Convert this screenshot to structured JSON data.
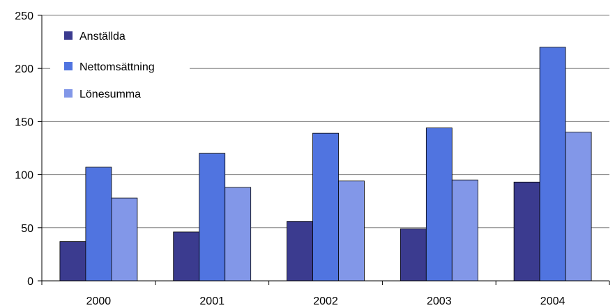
{
  "chart_data": {
    "type": "bar",
    "categories": [
      "2000",
      "2001",
      "2002",
      "2003",
      "2004"
    ],
    "series": [
      {
        "name": "Anställda",
        "values": [
          37,
          46,
          56,
          49,
          93
        ],
        "color": "#3b3b8f"
      },
      {
        "name": "Nettomsättning",
        "values": [
          107,
          120,
          139,
          144,
          220
        ],
        "color": "#5074e0"
      },
      {
        "name": "Lönesumma",
        "values": [
          78,
          88,
          94,
          95,
          140
        ],
        "color": "#8297e8"
      }
    ],
    "ylim": [
      0,
      250
    ],
    "yticks": [
      "0",
      "50",
      "100",
      "150",
      "200",
      "250"
    ],
    "grid": true,
    "legend_position": "top-left inside plot"
  }
}
